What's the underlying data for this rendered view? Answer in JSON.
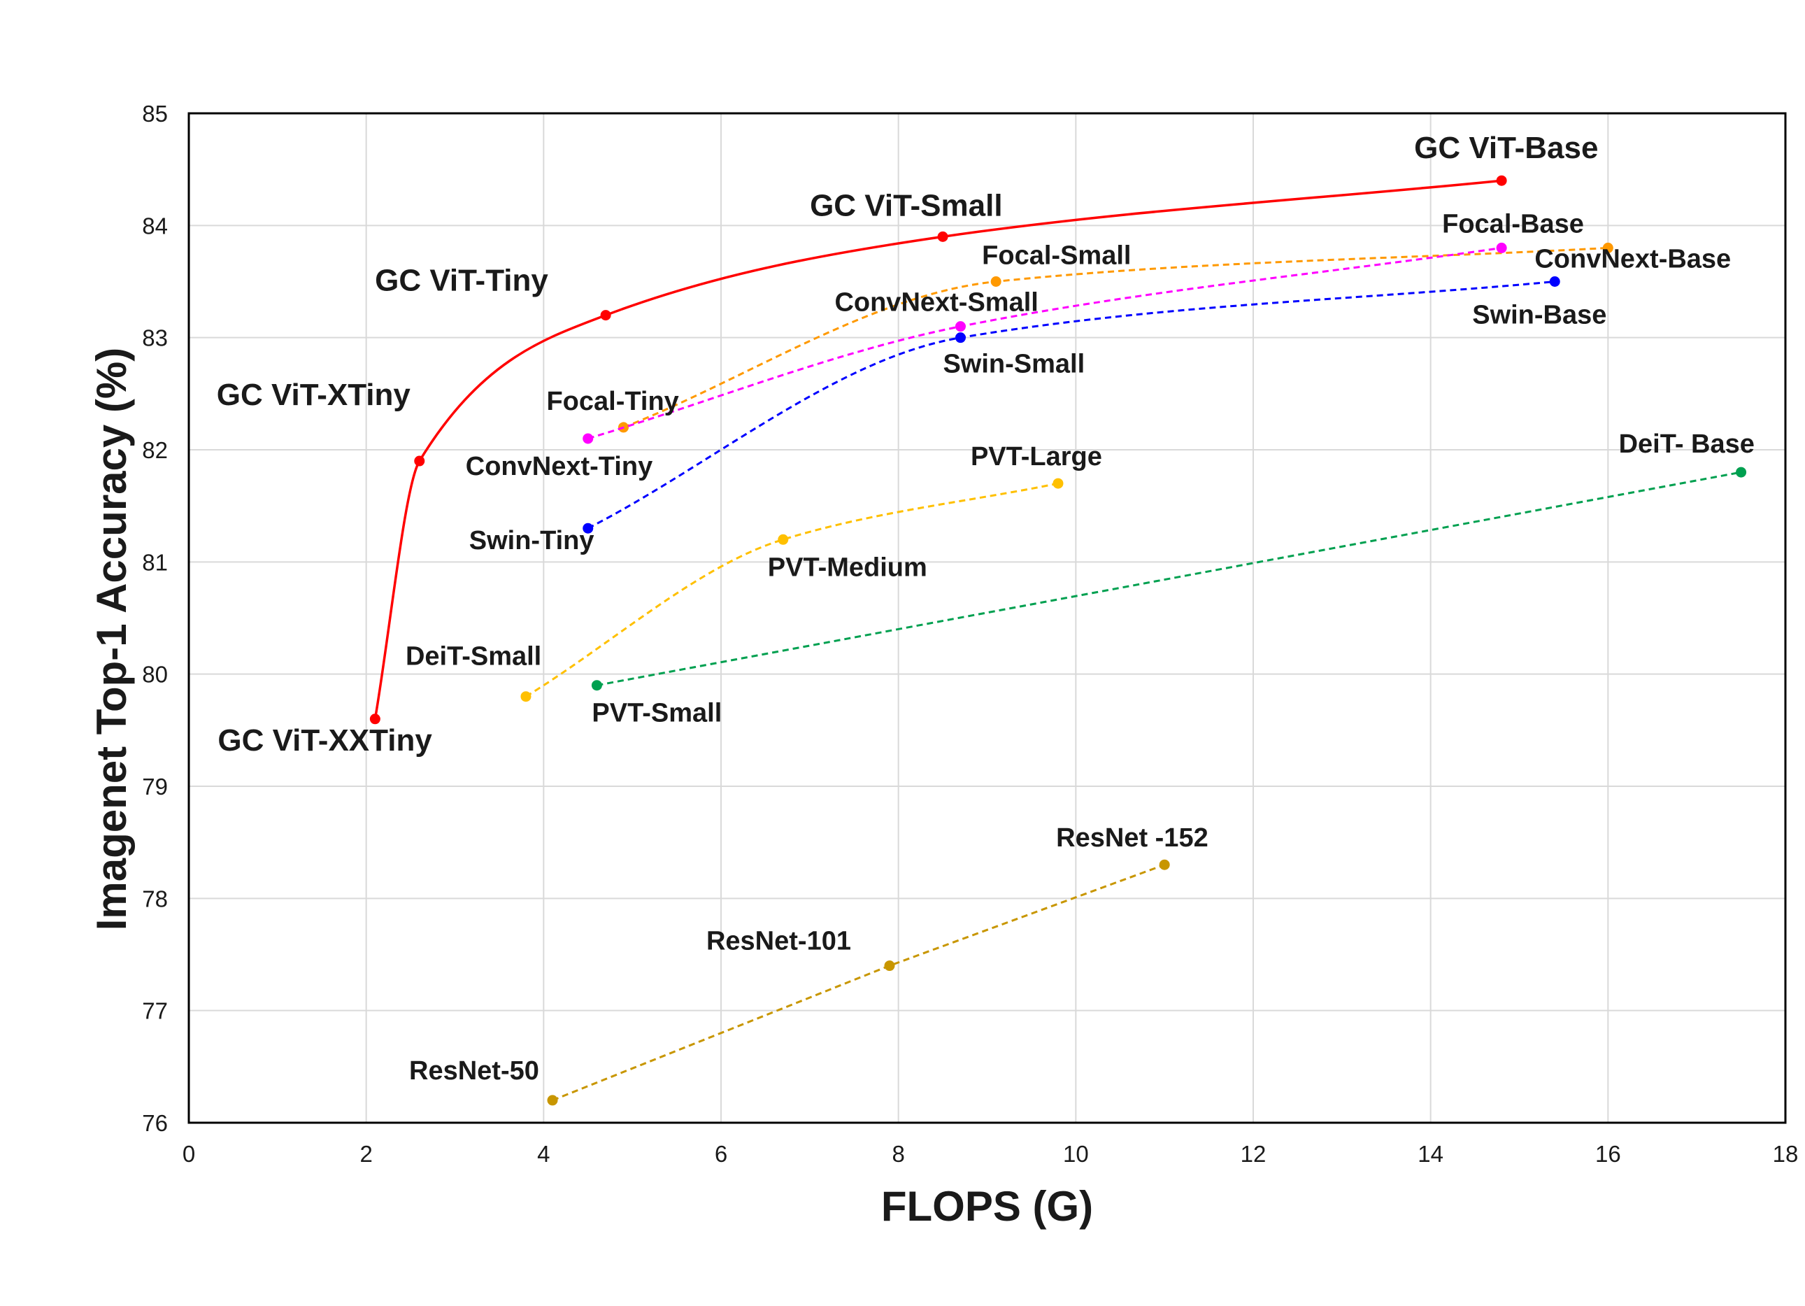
{
  "chart_data": {
    "type": "line",
    "xlabel": "FLOPS (G)",
    "ylabel": "Imagenet Top-1 Accuracy (%)",
    "xlim": [
      0,
      18
    ],
    "ylim": [
      76,
      85
    ],
    "xticks": [
      0,
      2,
      4,
      6,
      8,
      10,
      12,
      14,
      16,
      18
    ],
    "yticks": [
      76,
      77,
      78,
      79,
      80,
      81,
      82,
      83,
      84,
      85
    ],
    "grid": true,
    "series": [
      {
        "id": "gcvit",
        "color": "#ff0000",
        "dashed": false,
        "smooth": true,
        "big_labels": true,
        "points": [
          {
            "x": 2.1,
            "y": 79.6,
            "label": "GC ViT-XXTiny"
          },
          {
            "x": 2.6,
            "y": 81.9,
            "label": "GC ViT-XTiny"
          },
          {
            "x": 4.7,
            "y": 83.2,
            "label": "GC ViT-Tiny"
          },
          {
            "x": 8.5,
            "y": 83.9,
            "label": "GC ViT-Small"
          },
          {
            "x": 14.8,
            "y": 84.4,
            "label": "GC ViT-Base"
          }
        ]
      },
      {
        "id": "focal",
        "color": "#ff9900",
        "dashed": true,
        "smooth": true,
        "points": [
          {
            "x": 4.9,
            "y": 82.2,
            "label": "Focal-Tiny"
          },
          {
            "x": 9.1,
            "y": 83.5,
            "label": "Focal-Small"
          },
          {
            "x": 16.0,
            "y": 83.8,
            "label": "ConvNext-Base"
          }
        ]
      },
      {
        "id": "convnext",
        "color": "#ff00ff",
        "dashed": true,
        "smooth": true,
        "points": [
          {
            "x": 4.5,
            "y": 82.1,
            "label": "ConvNext-Tiny"
          },
          {
            "x": 8.7,
            "y": 83.1,
            "label": "ConvNext-Small"
          },
          {
            "x": 14.8,
            "y": 83.8,
            "label": "Focal-Base"
          }
        ]
      },
      {
        "id": "swin",
        "color": "#0000ff",
        "dashed": true,
        "smooth": true,
        "points": [
          {
            "x": 4.5,
            "y": 81.3,
            "label": "Swin-Tiny"
          },
          {
            "x": 8.7,
            "y": 83.0,
            "label": "Swin-Small"
          },
          {
            "x": 15.4,
            "y": 83.5,
            "label": "Swin-Base"
          }
        ]
      },
      {
        "id": "pvt",
        "color": "#ffc000",
        "dashed": true,
        "smooth": true,
        "points": [
          {
            "x": 3.8,
            "y": 79.8,
            "label": "DeiT-Small"
          },
          {
            "x": 6.7,
            "y": 81.2,
            "label": "PVT-Medium"
          },
          {
            "x": 9.8,
            "y": 81.7,
            "label": "PVT-Large"
          }
        ]
      },
      {
        "id": "deit",
        "color": "#00a050",
        "dashed": true,
        "smooth": false,
        "points": [
          {
            "x": 4.6,
            "y": 79.9,
            "label": "PVT-Small"
          },
          {
            "x": 17.5,
            "y": 81.8,
            "label": "DeiT- Base"
          }
        ]
      },
      {
        "id": "resnet",
        "color": "#c89600",
        "dashed": true,
        "smooth": false,
        "points": [
          {
            "x": 4.1,
            "y": 76.2,
            "label": "ResNet-50"
          },
          {
            "x": 7.9,
            "y": 77.4,
            "label": "ResNet-101"
          },
          {
            "x": 11.0,
            "y": 78.3,
            "label": "ResNet -152"
          }
        ]
      }
    ]
  }
}
